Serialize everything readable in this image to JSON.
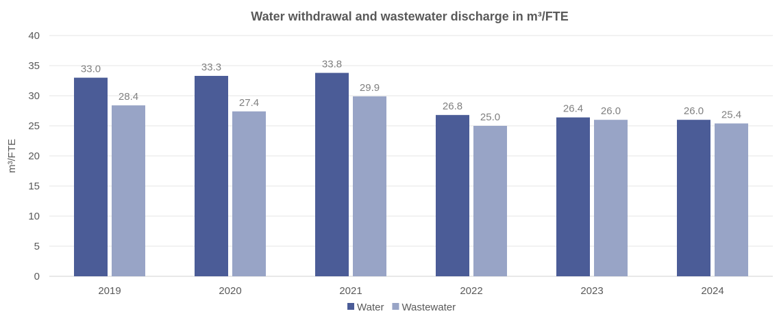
{
  "chart_data": {
    "type": "bar",
    "title": "Water withdrawal and wastewater discharge in m³/FTE",
    "xlabel": "",
    "ylabel": "m³/FTE",
    "ylim": [
      0,
      40
    ],
    "yticks": [
      0,
      5,
      10,
      15,
      20,
      25,
      30,
      35,
      40
    ],
    "grid": true,
    "legend_position": "bottom",
    "categories": [
      "2019",
      "2020",
      "2021",
      "2022",
      "2023",
      "2024"
    ],
    "series": [
      {
        "name": "Water",
        "color": "#4b5c97",
        "values": [
          33.0,
          33.3,
          33.8,
          26.8,
          26.4,
          26.0
        ]
      },
      {
        "name": "Wastewater",
        "color": "#98a4c6",
        "values": [
          28.4,
          27.4,
          29.9,
          25.0,
          26.0,
          25.4
        ]
      }
    ]
  }
}
